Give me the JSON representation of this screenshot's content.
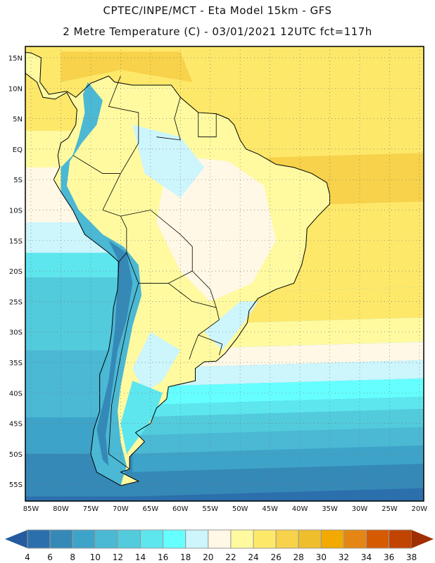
{
  "header": {
    "title_line1": "CPTEC/INPE/MCT -  Eta Model 15km - GFS",
    "title_line2": "2 Metre Temperature (C) - 03/01/2021 12UTC fct=117h"
  },
  "map": {
    "variable": "2 Metre Temperature",
    "units": "C",
    "lat_labels": [
      "15N",
      "10N",
      "5N",
      "EQ",
      "5S",
      "10S",
      "15S",
      "20S",
      "25S",
      "30S",
      "35S",
      "40S",
      "45S",
      "50S",
      "55S"
    ],
    "lat_values": [
      15,
      10,
      5,
      0,
      -5,
      -10,
      -15,
      -20,
      -25,
      -30,
      -35,
      -40,
      -45,
      -50,
      -55
    ],
    "lon_labels": [
      "85W",
      "80W",
      "75W",
      "70W",
      "65W",
      "60W",
      "55W",
      "50W",
      "45W",
      "40W",
      "35W",
      "30W",
      "25W",
      "20W"
    ],
    "lon_values": [
      -85,
      -80,
      -75,
      -70,
      -65,
      -60,
      -55,
      -50,
      -45,
      -40,
      -35,
      -30,
      -25,
      -20
    ]
  },
  "colorbar": {
    "ticks": [
      "4",
      "6",
      "8",
      "10",
      "12",
      "14",
      "16",
      "18",
      "20",
      "22",
      "24",
      "26",
      "28",
      "30",
      "32",
      "34",
      "36",
      "38"
    ],
    "colors": [
      "#2c6fad",
      "#3589b7",
      "#3ea3c8",
      "#4bb8d4",
      "#52cbdc",
      "#5ee6ee",
      "#66ffff",
      "#ccf5fc",
      "#fff8e6",
      "#fffaa0",
      "#fee86a",
      "#f7d24a",
      "#efbe2c",
      "#f2a900",
      "#e58614",
      "#d65a00",
      "#c14400"
    ],
    "under_color": "#265a9e",
    "over_color": "#a02e00"
  }
}
